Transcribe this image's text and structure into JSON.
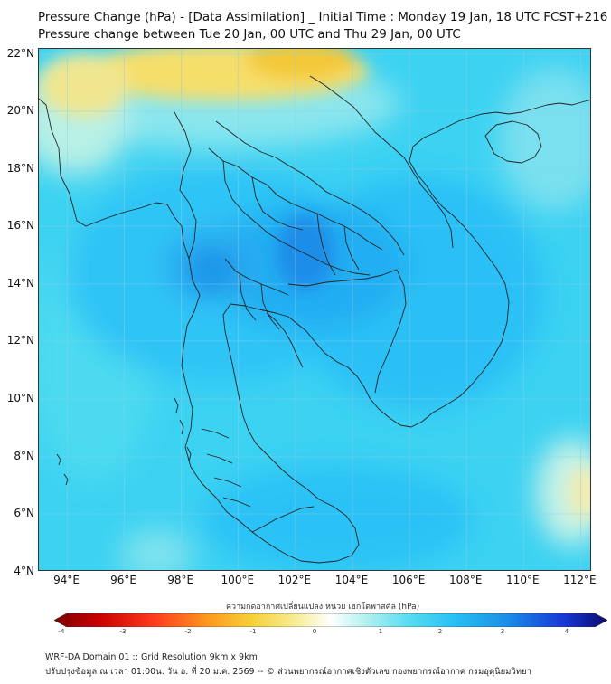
{
  "header": {
    "line1": "Pressure Change (hPa) - [Data Assimilation] _ Initial Time : Monday 19 Jan, 18 UTC FCST+216",
    "line2": "Pressure change between Tue 20 Jan, 00 UTC and Thu 29 Jan, 00 UTC"
  },
  "axes": {
    "lat_labels": [
      "22°N",
      "20°N",
      "18°N",
      "16°N",
      "14°N",
      "12°N",
      "10°N",
      "8°N",
      "6°N",
      "4°N"
    ],
    "lon_labels": [
      "94°E",
      "96°E",
      "98°E",
      "100°E",
      "102°E",
      "104°E",
      "106°E",
      "108°E",
      "110°E",
      "112°E"
    ],
    "lat_range": [
      4,
      22.3
    ],
    "lon_range": [
      93,
      112.4
    ]
  },
  "colorbar": {
    "title": "ความกดอากาศเปลี่ยนแปลง หน่วย เฮกโตพาสคัล (hPa)",
    "ticks": [
      "-4",
      "-3",
      "-2",
      "-1",
      "0",
      "1",
      "2",
      "3",
      "4"
    ],
    "range": [
      -4,
      4
    ]
  },
  "footer": {
    "line1": "WRF-DA Domain 01 :: Grid Resolution 9km x 9km",
    "line2": "ปรับปรุงข้อมูล ณ เวลา 01:00น. วัน อ. ที่ 20 ม.ค. 2569 -- © ส่วนพยากรณ์อากาศเชิงตัวเลข กองพยากรณ์อากาศ กรมอุตุนิยมวิทยา"
  },
  "colors": {
    "field_base": "#3cd2f2",
    "positive_high": "#1a8de8",
    "positive_mid": "#28b4f4",
    "light_cyan": "#9aeef2",
    "yellow": "#f6de6a",
    "orange": "#f4c838",
    "coastline": "#222222",
    "gridline": "#8fcde6"
  }
}
